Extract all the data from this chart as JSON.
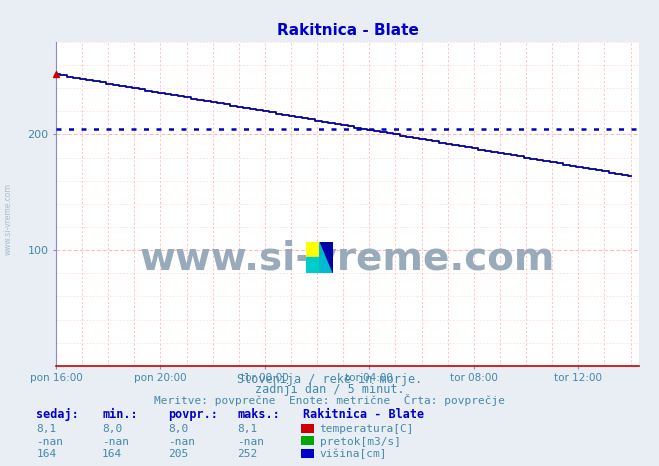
{
  "title": "Rakitnica - Blate",
  "title_color": "#0000cc",
  "bg_color": "#e8eef4",
  "plot_bg_color": "#ffffff",
  "x_tick_labels": [
    "pon 16:00",
    "pon 20:00",
    "tor 00:00",
    "tor 04:00",
    "tor 08:00",
    "tor 12:00"
  ],
  "x_tick_positions": [
    0,
    48,
    96,
    144,
    192,
    240
  ],
  "y_ticks": [
    100,
    200
  ],
  "ylim": [
    0,
    280
  ],
  "xlim": [
    0,
    268
  ],
  "visina_start": 252,
  "visina_end": 164,
  "visina_avg": 205,
  "n_points": 265,
  "line_color": "#000099",
  "avg_line_color": "#0000cc",
  "grid_color_v": "#ffaaaa",
  "grid_color_h": "#ffaaaa",
  "grid_color_hh": "#aaaaff",
  "subtitle1": "Slovenija / reke in morje.",
  "subtitle2": "zadnji dan / 5 minut.",
  "subtitle3": "Meritve: povprečne  Enote: metrične  Črta: povprečje",
  "subtitle_color": "#4488aa",
  "table_color": "#0000cc",
  "station_label": "Rakitnica - Blate",
  "rows": [
    {
      "label": "temperatura[C]",
      "color": "#cc0000",
      "sedaj": "8,1",
      "min": "8,0",
      "povpr": "8,0",
      "maks": "8,1"
    },
    {
      "label": "pretok[m3/s]",
      "color": "#00aa00",
      "sedaj": "-nan",
      "min": "-nan",
      "povpr": "-nan",
      "maks": "-nan"
    },
    {
      "label": "višina[cm]",
      "color": "#0000cc",
      "sedaj": "164",
      "min": "164",
      "povpr": "205",
      "maks": "252"
    }
  ],
  "watermark": "www.si-vreme.com",
  "watermark_color": "#99aabb",
  "logo_colors": [
    "#ffff00",
    "#00cccc",
    "#0000aa"
  ]
}
